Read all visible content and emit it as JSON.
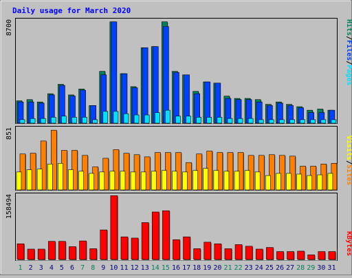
{
  "title": "Daily usage for March 2020",
  "colors": {
    "background": "#c0c0c0",
    "title": "#0000ff",
    "hits": "#00805c",
    "files": "#0040ff",
    "pages": "#00e0ff",
    "visits": "#ffff00",
    "sites": "#ff8000",
    "kbytes": "#ff0000",
    "weekend_label": "#00805c",
    "day_label": "#000080",
    "axis_label": "#000000"
  },
  "chart_data": [
    {
      "type": "bar",
      "name": "hits-files-pages",
      "categories": [
        "1",
        "2",
        "3",
        "4",
        "5",
        "6",
        "7",
        "8",
        "9",
        "10",
        "11",
        "12",
        "13",
        "14",
        "15",
        "16",
        "17",
        "18",
        "19",
        "20",
        "21",
        "22",
        "23",
        "24",
        "25",
        "26",
        "27",
        "28",
        "29",
        "30",
        "31"
      ],
      "weekend_days": [
        "1",
        "7",
        "8",
        "14",
        "15",
        "21",
        "22",
        "28",
        "29"
      ],
      "ylim": [
        0,
        8700
      ],
      "ymax_label": "8700",
      "legend": [
        {
          "label": "Hits",
          "color": "#00805c"
        },
        {
          "label": "/",
          "color": "#000000"
        },
        {
          "label": "Files",
          "color": "#0040ff"
        },
        {
          "label": "/",
          "color": "#000000"
        },
        {
          "label": "Pages",
          "color": "#00e0ff"
        }
      ],
      "series": [
        {
          "name": "Hits",
          "values": [
            1900,
            2000,
            1800,
            2500,
            3300,
            2400,
            2900,
            1500,
            4400,
            8600,
            4200,
            3100,
            6400,
            6500,
            8600,
            4400,
            4100,
            2700,
            3500,
            3400,
            2300,
            2100,
            2100,
            2000,
            1600,
            1800,
            1600,
            1400,
            1100,
            1200,
            1100
          ]
        },
        {
          "name": "Files",
          "values": [
            1800,
            1800,
            1700,
            2400,
            3200,
            2300,
            2800,
            1500,
            4100,
            8600,
            4200,
            3000,
            6400,
            6500,
            8200,
            4300,
            4100,
            2500,
            3500,
            3400,
            2100,
            2000,
            2000,
            1800,
            1500,
            1700,
            1500,
            1300,
            900,
            900,
            1100
          ]
        },
        {
          "name": "Pages",
          "values": [
            300,
            400,
            400,
            500,
            600,
            500,
            500,
            300,
            1000,
            1000,
            800,
            700,
            700,
            900,
            1100,
            600,
            600,
            500,
            500,
            500,
            400,
            400,
            400,
            300,
            300,
            300,
            300,
            300,
            300,
            300,
            300
          ]
        }
      ]
    },
    {
      "type": "bar",
      "name": "visits-sites",
      "categories": [
        "1",
        "2",
        "3",
        "4",
        "5",
        "6",
        "7",
        "8",
        "9",
        "10",
        "11",
        "12",
        "13",
        "14",
        "15",
        "16",
        "17",
        "18",
        "19",
        "20",
        "21",
        "22",
        "23",
        "24",
        "25",
        "26",
        "27",
        "28",
        "29",
        "30",
        "31"
      ],
      "ylim": [
        0,
        851
      ],
      "ymax_label": "851",
      "legend": [
        {
          "label": "Visits",
          "color": "#ffff00"
        },
        {
          "label": "/",
          "color": "#000000"
        },
        {
          "label": "Sites",
          "color": "#ff8000"
        }
      ],
      "series": [
        {
          "name": "Visits",
          "values": [
            250,
            280,
            290,
            360,
            370,
            280,
            260,
            230,
            250,
            260,
            260,
            250,
            250,
            260,
            270,
            260,
            250,
            270,
            300,
            270,
            260,
            260,
            270,
            250,
            200,
            230,
            230,
            220,
            200,
            210,
            230
          ]
        },
        {
          "name": "Sites",
          "values": [
            500,
            510,
            680,
            830,
            550,
            550,
            480,
            320,
            440,
            560,
            510,
            490,
            460,
            520,
            520,
            520,
            380,
            500,
            540,
            520,
            520,
            520,
            480,
            480,
            490,
            480,
            470,
            330,
            330,
            360,
            370
          ]
        }
      ]
    },
    {
      "type": "bar",
      "name": "kbytes",
      "categories": [
        "1",
        "2",
        "3",
        "4",
        "5",
        "6",
        "7",
        "8",
        "9",
        "10",
        "11",
        "12",
        "13",
        "14",
        "15",
        "16",
        "17",
        "18",
        "19",
        "20",
        "21",
        "22",
        "23",
        "24",
        "25",
        "26",
        "27",
        "28",
        "29",
        "30",
        "31"
      ],
      "ylim": [
        0,
        158494
      ],
      "ymax_label": "158494",
      "legend": [
        {
          "label": "KBytes",
          "color": "#ff0000"
        }
      ],
      "series": [
        {
          "name": "KBytes",
          "values": [
            40000,
            27000,
            27000,
            46000,
            46000,
            33000,
            47000,
            28000,
            74000,
            158000,
            57000,
            54000,
            92000,
            118000,
            121000,
            50000,
            57000,
            28000,
            44000,
            40000,
            28000,
            38000,
            34000,
            27000,
            31000,
            21000,
            21000,
            22000,
            13000,
            21000,
            21000
          ]
        }
      ]
    }
  ]
}
